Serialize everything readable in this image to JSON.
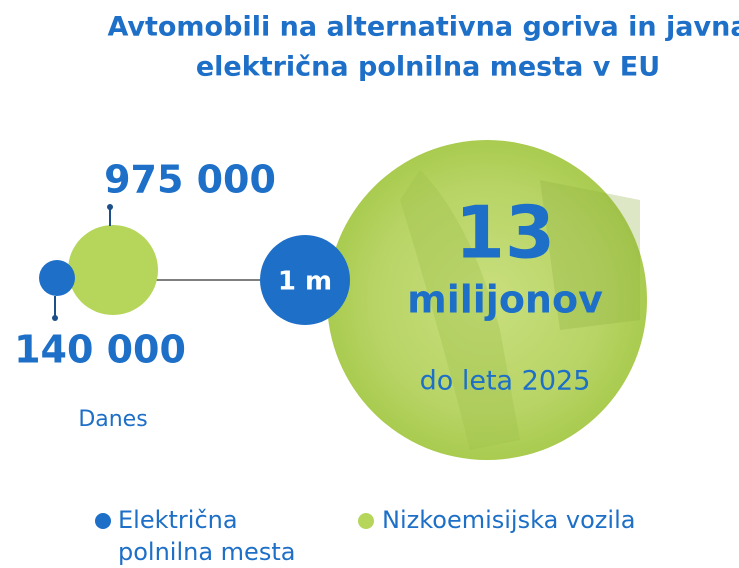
{
  "title_lines": [
    "Avtomobili na alternativna goriva in javna",
    "električna polnilna mesta v EU"
  ],
  "today": {
    "vehicles": "975 000",
    "charging_points": "140 000",
    "label": "Danes"
  },
  "middle": {
    "label": "1 m"
  },
  "future": {
    "number": "13",
    "unit": "milijonov",
    "label": "do leta 2025"
  },
  "legend": [
    {
      "lines": [
        "Električna",
        "polnilna mesta"
      ]
    },
    {
      "lines": [
        "Nizkoemisijska vozila"
      ]
    }
  ]
}
